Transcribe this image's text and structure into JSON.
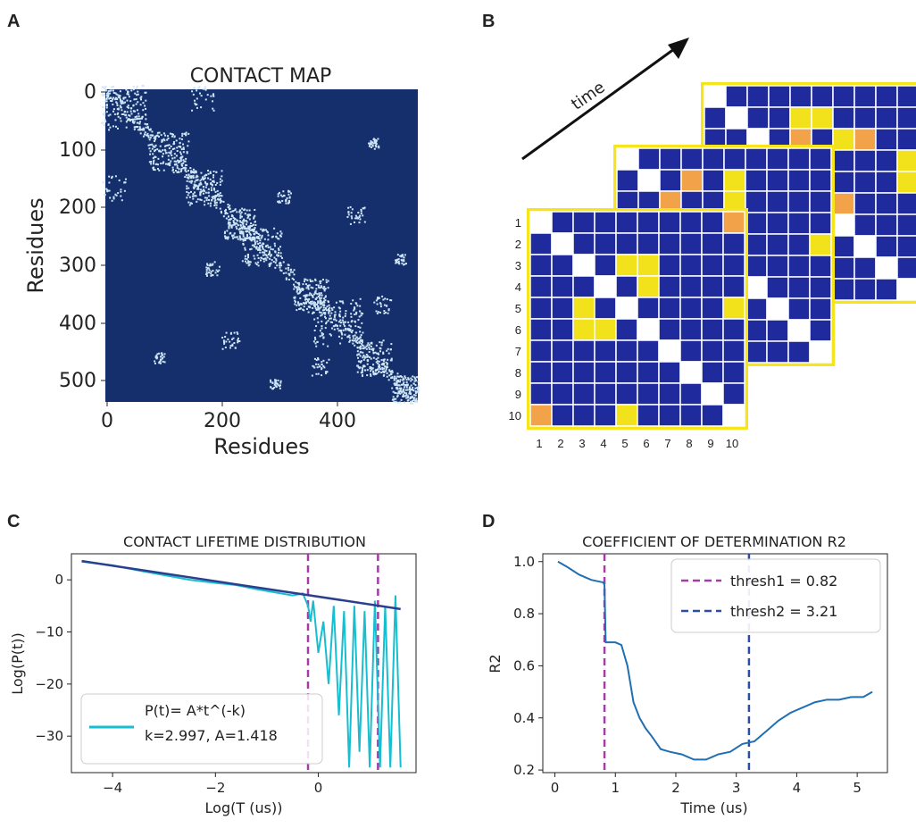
{
  "panels": {
    "A": {
      "label": "A",
      "title": "CONTACT MAP",
      "xlabel": "Residues",
      "ylabel": "Residues",
      "xticks": [
        "0",
        "200",
        "400"
      ],
      "yticks": [
        "0",
        "100",
        "200",
        "300",
        "400",
        "500"
      ],
      "bg_color": "#142f6b",
      "contact_color": "#cfe6f7"
    },
    "B": {
      "label": "B",
      "arrow_label": "time",
      "row_numbers": [
        "1",
        "2",
        "3",
        "4",
        "5",
        "6",
        "7",
        "8",
        "9",
        "10"
      ],
      "col_numbers": [
        "1",
        "2",
        "3",
        "4",
        "5",
        "6",
        "7",
        "8",
        "9",
        "10"
      ],
      "frame_color": "#f5e51a",
      "cell_color": "#1f2a9c",
      "highlight_yellow": "#f2e21c",
      "highlight_orange": "#f2a34a"
    },
    "C": {
      "label": "C",
      "title": "CONTACT LIFETIME DISTRIBUTION",
      "xlabel": "Log(T (us))",
      "ylabel": "Log(P(t))",
      "legend_line1": "P(t)= A*t^(-k)",
      "legend_line2": "k=2.997, A=1.418"
    },
    "D": {
      "label": "D",
      "title": "COEFFICIENT OF DETERMINATION R2",
      "xlabel": "Time (us)",
      "ylabel": "R2",
      "legend1": "thresh1 = 0.82",
      "legend2": "thresh2 = 3.21"
    }
  },
  "chart_data": [
    {
      "type": "line",
      "panel": "C",
      "title": "CONTACT LIFETIME DISTRIBUTION",
      "xlabel": "Log(T (us))",
      "ylabel": "Log(P(t))",
      "xlim": [
        -4.8,
        1.9
      ],
      "ylim": [
        -37,
        5
      ],
      "xticks": [
        -4,
        -2,
        0
      ],
      "yticks": [
        0,
        -10,
        -20,
        -30
      ],
      "series": [
        {
          "name": "P(t)= A*t^(-k)\nk=2.997, A=1.418",
          "color": "#17becf",
          "x": [
            -4.6,
            -4.0,
            -3.5,
            -3.0,
            -2.5,
            -2.0,
            -1.6,
            -1.2,
            -0.9,
            -0.5,
            -0.3,
            -0.2,
            -0.15,
            -0.1,
            0.0,
            0.1,
            0.2,
            0.3,
            0.4,
            0.5,
            0.6,
            0.7,
            0.8,
            0.9,
            1.0,
            1.1,
            1.2,
            1.3,
            1.4,
            1.5,
            1.6
          ],
          "y": [
            3.5,
            2.8,
            1.8,
            0.9,
            0.0,
            -0.6,
            -1.0,
            -1.8,
            -2.3,
            -3.0,
            -2.6,
            -5.0,
            -8.0,
            -4.0,
            -14.0,
            -8.0,
            -20.0,
            -5.0,
            -26.0,
            -6.0,
            -36.0,
            -5.0,
            -33.0,
            -6.0,
            -36.0,
            -4.0,
            -36.0,
            -5.0,
            -36.0,
            -3.0,
            -36.0
          ]
        }
      ],
      "fit_line": {
        "color": "#2b3f8f",
        "x": [
          -4.6,
          1.6
        ],
        "y": [
          3.6,
          -5.6
        ]
      },
      "vlines": [
        {
          "x": -0.2,
          "color": "#a23da6"
        },
        {
          "x": 1.16,
          "color": "#a23da6"
        }
      ]
    },
    {
      "type": "line",
      "panel": "D",
      "title": "COEFFICIENT OF DETERMINATION R2",
      "xlabel": "Time (us)",
      "ylabel": "R2",
      "xlim": [
        -0.2,
        5.5
      ],
      "ylim": [
        0.19,
        1.03
      ],
      "xticks": [
        0,
        1,
        2,
        3,
        4,
        5
      ],
      "yticks": [
        0.2,
        0.4,
        0.6,
        0.8,
        1.0
      ],
      "series": [
        {
          "name": "R2",
          "color": "#1f6fb2",
          "x": [
            0.05,
            0.2,
            0.4,
            0.6,
            0.8,
            0.82,
            0.84,
            1.0,
            1.1,
            1.2,
            1.3,
            1.4,
            1.5,
            1.6,
            1.75,
            1.9,
            2.1,
            2.3,
            2.5,
            2.7,
            2.9,
            3.1,
            3.3,
            3.5,
            3.7,
            3.9,
            4.1,
            4.3,
            4.5,
            4.7,
            4.9,
            5.1,
            5.25
          ],
          "y": [
            1.0,
            0.98,
            0.95,
            0.93,
            0.92,
            0.91,
            0.69,
            0.69,
            0.68,
            0.6,
            0.46,
            0.4,
            0.36,
            0.33,
            0.28,
            0.27,
            0.26,
            0.24,
            0.24,
            0.26,
            0.27,
            0.3,
            0.31,
            0.35,
            0.39,
            0.42,
            0.44,
            0.46,
            0.47,
            0.47,
            0.48,
            0.48,
            0.5
          ]
        }
      ],
      "vlines": [
        {
          "name": "thresh1 = 0.82",
          "x": 0.82,
          "color": "#a23da6"
        },
        {
          "name": "thresh2 = 3.21",
          "x": 3.21,
          "color": "#2b4fa8"
        }
      ]
    }
  ]
}
